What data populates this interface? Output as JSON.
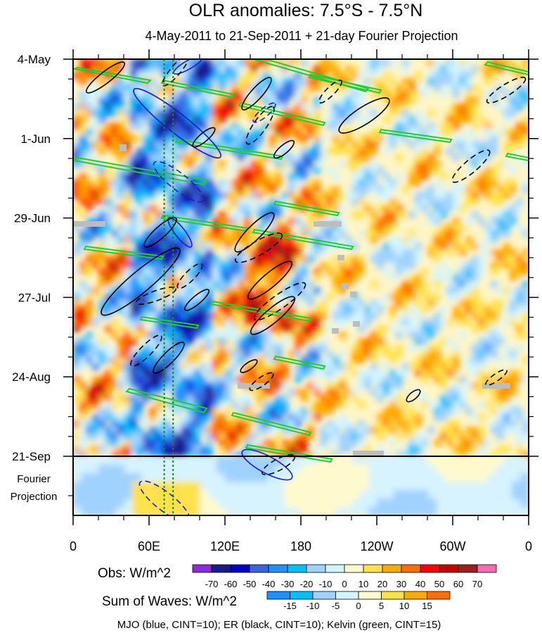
{
  "title": "OLR anomalies: 7.5°S - 7.5°N",
  "subtitle": "4-May-2011 to 21-Sep-2011 + 21-day Fourier Projection",
  "colors": {
    "obs_palette": [
      "#8a2be2",
      "#1a1a8c",
      "#0000cd",
      "#3c64dc",
      "#1e90ff",
      "#00bfff",
      "#a0d2ff",
      "#d2f5ff",
      "#fffacd",
      "#ffe14b",
      "#ffaa00",
      "#ff6e00",
      "#ff0000",
      "#c80000",
      "#a01e1e",
      "#ff69b4"
    ],
    "wave_palette": [
      "#1e90ff",
      "#00bfff",
      "#a0d2ff",
      "#d2f5ff",
      "#fffacd",
      "#ffe14b",
      "#ffaa00",
      "#ff6e00"
    ],
    "mjo": "#1a1ad0",
    "er": "#000000",
    "kelvin": "#22cc33",
    "vline": "#1a8a1a"
  },
  "chart_data": {
    "type": "heatmap",
    "x_ticks": [
      "0",
      "60E",
      "120E",
      "180",
      "120W",
      "60W",
      "0"
    ],
    "y_ticks": [
      "4-May",
      "1-Jun",
      "29-Jun",
      "27-Jul",
      "24-Aug",
      "21-Sep"
    ],
    "projection_label": [
      "Fourier",
      "Projection"
    ],
    "obs_legend": {
      "title": "Obs: W/m^2",
      "labels": [
        "-70",
        "-60",
        "-50",
        "-40",
        "-30",
        "-20",
        "-10",
        "0",
        "10",
        "20",
        "30",
        "40",
        "50",
        "60",
        "70"
      ]
    },
    "wave_legend": {
      "title": "Sum of Waves: W/m^2",
      "labels": [
        "-15",
        "-10",
        "-5",
        "0",
        "5",
        "10",
        "15"
      ]
    },
    "footer": "MJO (blue, CINT=10); ER (black, CINT=10); Kelvin (green, CINT=15)",
    "x_range_deg": [
      0,
      360
    ],
    "observed_period": [
      "4-May-2011",
      "21-Sep-2011"
    ],
    "projection_days": 21,
    "vertical_reference_lines_deg": [
      72,
      79
    ]
  }
}
